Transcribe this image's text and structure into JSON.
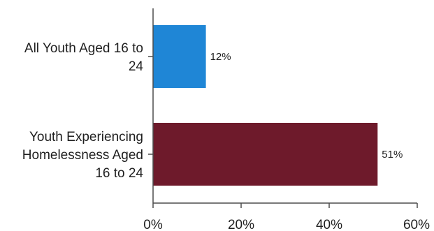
{
  "chart_data": {
    "type": "bar",
    "orientation": "horizontal",
    "categories": [
      [
        "All Youth Aged 16 to",
        "24"
      ],
      [
        "Youth Experiencing",
        "Homelessness Aged",
        "16 to 24"
      ]
    ],
    "values": [
      12,
      51
    ],
    "data_labels": [
      "12%",
      "51%"
    ],
    "colors": [
      "#1f86d6",
      "#6e1a2b"
    ],
    "xlim": [
      0,
      60
    ],
    "x_ticks": [
      0,
      20,
      40,
      60
    ],
    "x_tick_labels": [
      "0%",
      "20%",
      "40%",
      "60%"
    ],
    "grid": false,
    "legend": "none"
  }
}
